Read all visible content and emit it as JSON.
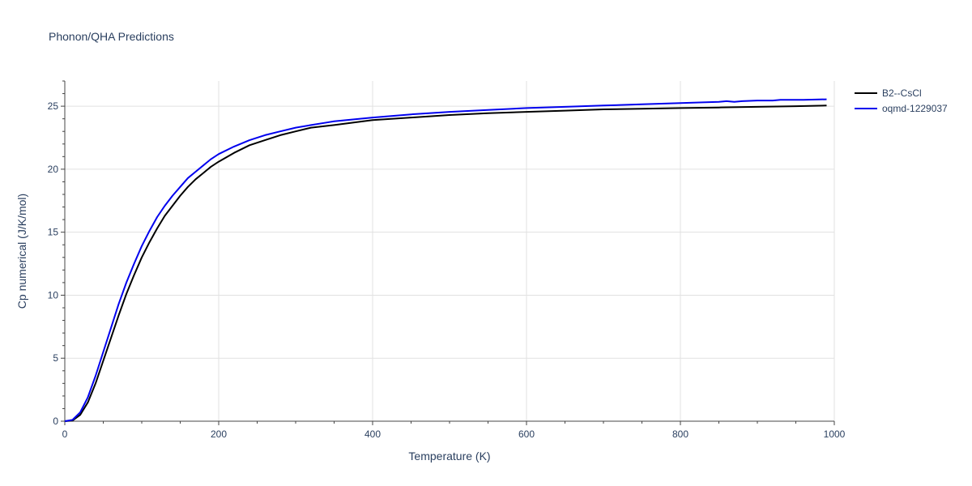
{
  "chart_data": {
    "type": "line",
    "title": "Phonon/QHA Predictions",
    "xlabel": "Temperature (K)",
    "ylabel": "Cp numerical (J/K/mol)",
    "xlim": [
      0,
      1000
    ],
    "ylim": [
      0,
      27
    ],
    "xticks": [
      0,
      200,
      400,
      600,
      800,
      1000
    ],
    "yticks": [
      0,
      5,
      10,
      15,
      20,
      25
    ],
    "grid": true,
    "legend_position": "top-right",
    "series": [
      {
        "name": "B2--CsCl",
        "color": "#000000",
        "x": [
          0,
          10,
          20,
          30,
          40,
          50,
          60,
          70,
          80,
          90,
          100,
          110,
          120,
          130,
          140,
          150,
          160,
          170,
          180,
          190,
          200,
          220,
          240,
          260,
          280,
          300,
          320,
          350,
          400,
          450,
          500,
          550,
          600,
          650,
          700,
          750,
          800,
          850,
          900,
          950,
          990
        ],
        "y": [
          0,
          0.05,
          0.5,
          1.5,
          3.0,
          4.8,
          6.6,
          8.4,
          10.1,
          11.6,
          13.0,
          14.2,
          15.3,
          16.3,
          17.1,
          17.9,
          18.6,
          19.2,
          19.7,
          20.2,
          20.6,
          21.3,
          21.9,
          22.3,
          22.7,
          23.0,
          23.3,
          23.5,
          23.9,
          24.1,
          24.3,
          24.45,
          24.55,
          24.65,
          24.75,
          24.8,
          24.85,
          24.9,
          24.95,
          25.0,
          25.05
        ]
      },
      {
        "name": "oqmd-1229037",
        "color": "#0000ee",
        "x": [
          0,
          10,
          20,
          30,
          40,
          50,
          60,
          70,
          80,
          90,
          100,
          110,
          120,
          130,
          140,
          150,
          160,
          170,
          180,
          190,
          200,
          220,
          240,
          260,
          280,
          300,
          320,
          340,
          350,
          400,
          450,
          500,
          550,
          600,
          650,
          700,
          750,
          800,
          850,
          860,
          870,
          880,
          900,
          920,
          930,
          950,
          960,
          990
        ],
        "y": [
          0,
          0.1,
          0.7,
          1.9,
          3.6,
          5.5,
          7.4,
          9.3,
          11.0,
          12.5,
          13.9,
          15.1,
          16.2,
          17.1,
          17.9,
          18.6,
          19.3,
          19.8,
          20.3,
          20.8,
          21.2,
          21.8,
          22.3,
          22.7,
          23.0,
          23.3,
          23.5,
          23.7,
          23.8,
          24.1,
          24.35,
          24.55,
          24.7,
          24.85,
          24.95,
          25.05,
          25.15,
          25.25,
          25.35,
          25.4,
          25.35,
          25.4,
          25.45,
          25.45,
          25.5,
          25.5,
          25.5,
          25.55
        ]
      }
    ]
  }
}
